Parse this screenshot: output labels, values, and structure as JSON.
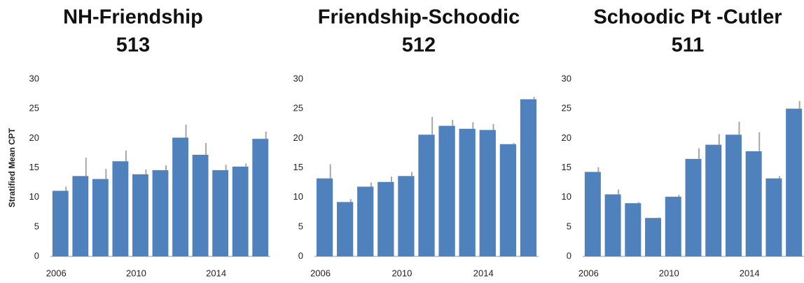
{
  "chart_data": [
    {
      "type": "bar",
      "title": "NH-Friendship",
      "subtitle": "513",
      "y_label": "Stratified Mean CPT",
      "categories": [
        "2006",
        null,
        null,
        null,
        "2010",
        null,
        null,
        null,
        "2014",
        null,
        null
      ],
      "values": [
        11.1,
        13.6,
        13.1,
        16.1,
        13.9,
        14.6,
        20.1,
        17.2,
        14.6,
        15.2,
        19.9
      ],
      "errors": [
        0.7,
        3.1,
        1.7,
        1.8,
        0.8,
        0.8,
        2.2,
        2.0,
        0.9,
        0.5,
        1.2
      ],
      "color": "#4f81bd",
      "error_color": "#a6a6a6",
      "ylim": [
        0,
        30
      ],
      "yticks": [
        0,
        5,
        10,
        15,
        20,
        25,
        30
      ]
    },
    {
      "type": "bar",
      "title": "Friendship-Schoodic",
      "subtitle": "512",
      "categories": [
        "2006",
        null,
        null,
        null,
        "2010",
        null,
        null,
        null,
        "2014",
        null,
        null
      ],
      "values": [
        13.2,
        9.2,
        11.8,
        12.6,
        13.6,
        20.6,
        22.1,
        21.6,
        21.4,
        19.0,
        26.6
      ],
      "errors": [
        2.4,
        0.5,
        0.7,
        0.9,
        0.7,
        3.0,
        1.0,
        1.1,
        1.0,
        0.2,
        0.4
      ],
      "color": "#4f81bd",
      "error_color": "#a6a6a6",
      "ylim": [
        0,
        30
      ],
      "yticks": [
        0,
        5,
        10,
        15,
        20,
        25,
        30
      ]
    },
    {
      "type": "bar",
      "title": "Schoodic Pt -Cutler",
      "subtitle": "511",
      "categories": [
        "2006",
        null,
        null,
        null,
        "2010",
        null,
        null,
        null,
        "2014",
        null,
        null
      ],
      "values": [
        14.3,
        10.5,
        9.0,
        6.5,
        10.1,
        16.5,
        18.9,
        20.6,
        17.8,
        13.2,
        25.0
      ],
      "errors": [
        0.8,
        0.8,
        0.2,
        0.1,
        0.3,
        1.8,
        1.8,
        2.2,
        3.2,
        0.4,
        1.3
      ],
      "color": "#4f81bd",
      "error_color": "#a6a6a6",
      "ylim": [
        0,
        30
      ],
      "yticks": [
        0,
        5,
        10,
        15,
        20,
        25,
        30
      ]
    }
  ]
}
